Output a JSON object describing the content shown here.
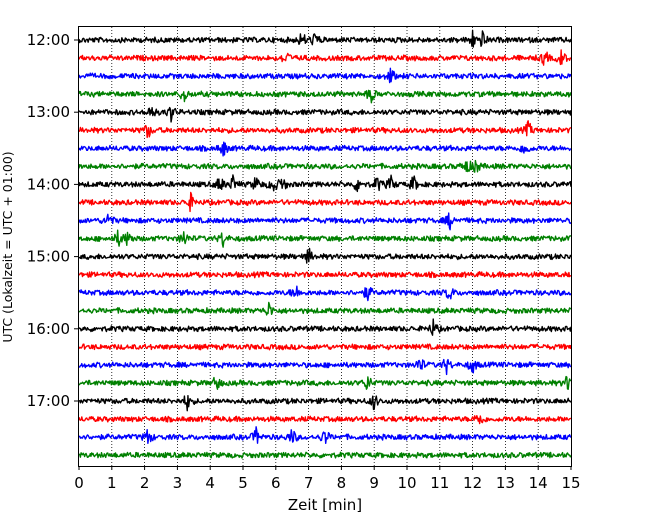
{
  "chart_data": {
    "type": "line",
    "title": "",
    "xlabel": "Zeit  [min]",
    "ylabel": "UTC (Lokalzeit = UTC + 01:00)",
    "xlim": [
      0,
      15
    ],
    "x_ticks": [
      "0",
      "1",
      "2",
      "3",
      "4",
      "5",
      "6",
      "7",
      "8",
      "9",
      "10",
      "11",
      "12",
      "13",
      "14",
      "15"
    ],
    "x_grid": "dotted vertical lines at each minute",
    "y_ticks": [
      "12:00",
      "13:00",
      "14:00",
      "15:00",
      "16:00",
      "17:00"
    ],
    "trace_interval_minutes": 15,
    "trace_colors_cycle": [
      "#000000",
      "#ff0000",
      "#0000ff",
      "#008000"
    ],
    "traces": [
      {
        "start": "12:00",
        "color": "#000000",
        "events_min": [
          6.8,
          7.2,
          12.0,
          12.3
        ]
      },
      {
        "start": "12:15",
        "color": "#ff0000",
        "events_min": [
          6.3,
          14.2,
          14.7
        ]
      },
      {
        "start": "12:30",
        "color": "#0000ff",
        "events_min": [
          9.5
        ]
      },
      {
        "start": "12:45",
        "color": "#008000",
        "events_min": [
          3.2,
          8.9
        ]
      },
      {
        "start": "13:00",
        "color": "#000000",
        "events_min": [
          2.2,
          2.8
        ]
      },
      {
        "start": "13:15",
        "color": "#ff0000",
        "events_min": [
          2.1,
          13.7
        ]
      },
      {
        "start": "13:30",
        "color": "#0000ff",
        "events_min": [
          4.4,
          13.6
        ]
      },
      {
        "start": "13:45",
        "color": "#008000",
        "events_min": [
          11.8,
          12.1
        ]
      },
      {
        "start": "14:00",
        "color": "#000000",
        "events_min": [
          4.3,
          4.7,
          5.4,
          5.9,
          6.2,
          8.5,
          9.1,
          9.5,
          10.2
        ]
      },
      {
        "start": "14:15",
        "color": "#ff0000",
        "events_min": [
          3.4
        ]
      },
      {
        "start": "14:30",
        "color": "#0000ff",
        "events_min": [
          0.9,
          11.3
        ]
      },
      {
        "start": "14:45",
        "color": "#008000",
        "events_min": [
          1.2,
          1.5,
          3.2,
          4.4
        ]
      },
      {
        "start": "15:00",
        "color": "#000000",
        "events_min": [
          7.0
        ]
      },
      {
        "start": "15:15",
        "color": "#ff0000",
        "events_min": []
      },
      {
        "start": "15:30",
        "color": "#0000ff",
        "events_min": [
          6.6,
          8.8,
          11.3
        ]
      },
      {
        "start": "15:45",
        "color": "#008000",
        "events_min": [
          5.8
        ]
      },
      {
        "start": "16:00",
        "color": "#000000",
        "events_min": [
          10.8
        ]
      },
      {
        "start": "16:15",
        "color": "#ff0000",
        "events_min": []
      },
      {
        "start": "16:30",
        "color": "#0000ff",
        "events_min": [
          10.4,
          11.2,
          12.0
        ]
      },
      {
        "start": "16:45",
        "color": "#008000",
        "events_min": [
          4.2,
          8.8,
          14.9
        ]
      },
      {
        "start": "17:00",
        "color": "#000000",
        "events_min": [
          9.0,
          3.3
        ]
      },
      {
        "start": "17:15",
        "color": "#ff0000",
        "events_min": [
          12.2
        ]
      },
      {
        "start": "17:30",
        "color": "#0000ff",
        "events_min": [
          2.1,
          5.4,
          6.5,
          7.5
        ]
      },
      {
        "start": "17:45",
        "color": "#008000",
        "events_min": []
      }
    ]
  }
}
